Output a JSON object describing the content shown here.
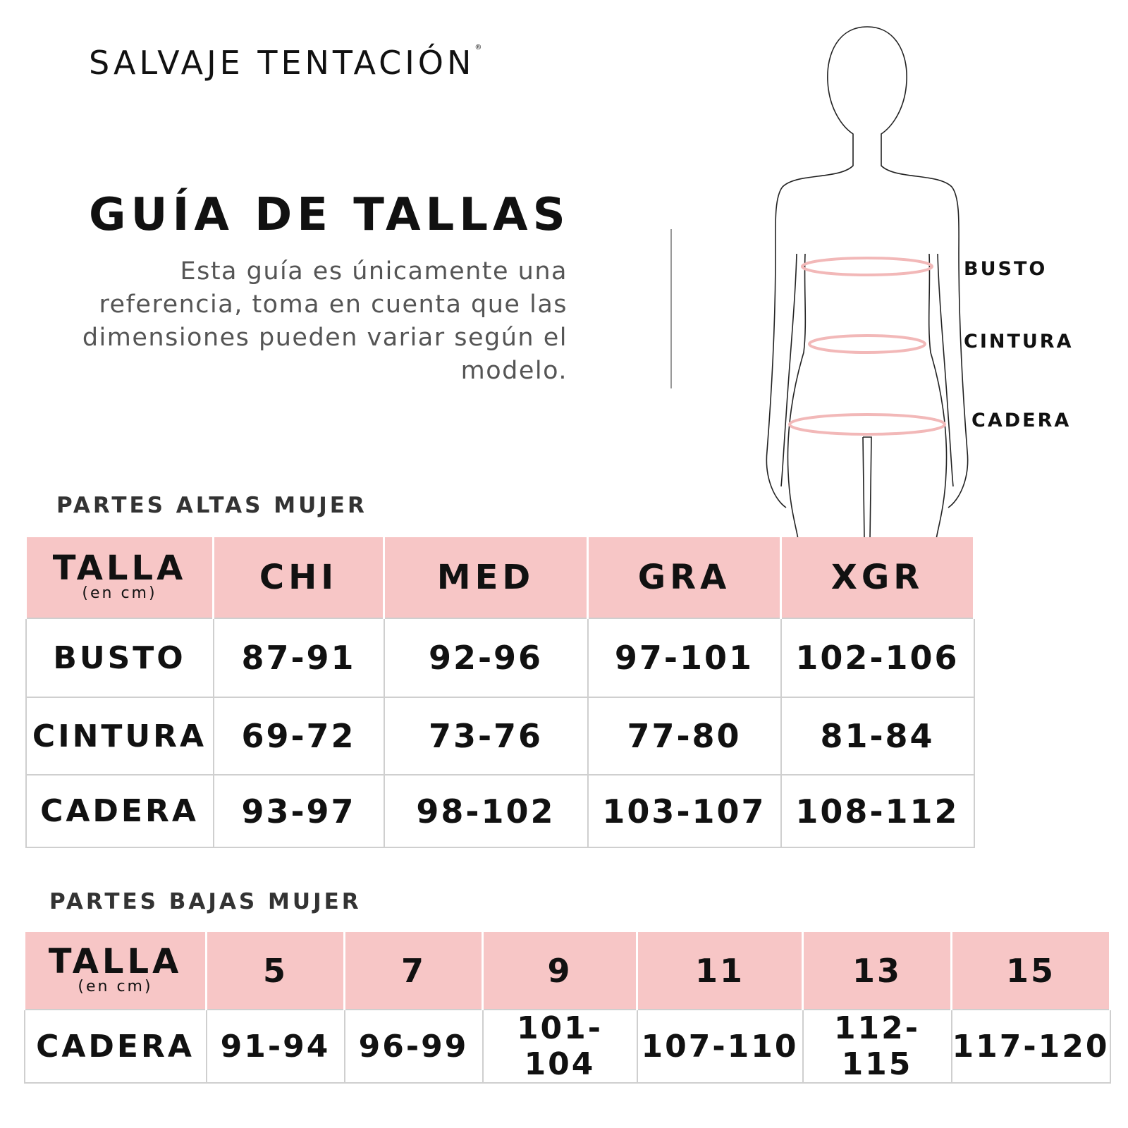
{
  "brand": {
    "name": "SALVAJE TENTACIÓN",
    "registered": "®"
  },
  "title": "GUÍA DE TALLAS",
  "description": "Esta guía es únicamente una referencia, toma en cuenta que las dimensiones pueden variar según el modelo.",
  "figure": {
    "labels": [
      "BUSTO",
      "CINTURA",
      "CADERA"
    ],
    "measure_color": "#f2b8b8"
  },
  "colors": {
    "header_bg": "#f7c6c6",
    "border": "#cfcfcf"
  },
  "tops": {
    "section_title": "PARTES ALTAS MUJER",
    "header": {
      "talla": "TALLA",
      "unit": "(en cm)",
      "sizes": [
        "CHI",
        "MED",
        "GRA",
        "XGR"
      ]
    },
    "rows": [
      {
        "label": "BUSTO",
        "values": [
          "87-91",
          "92-96",
          "97-101",
          "102-106"
        ]
      },
      {
        "label": "CINTURA",
        "values": [
          "69-72",
          "73-76",
          "77-80",
          "81-84"
        ]
      },
      {
        "label": "CADERA",
        "values": [
          "93-97",
          "98-102",
          "103-107",
          "108-112"
        ]
      }
    ]
  },
  "bottoms": {
    "section_title": "PARTES BAJAS MUJER",
    "header": {
      "talla": "TALLA",
      "unit": "(en cm)",
      "sizes": [
        "5",
        "7",
        "9",
        "11",
        "13",
        "15"
      ]
    },
    "rows": [
      {
        "label": "CADERA",
        "values": [
          "91-94",
          "96-99",
          "101-104",
          "107-110",
          "112-115",
          "117-120"
        ]
      }
    ]
  }
}
